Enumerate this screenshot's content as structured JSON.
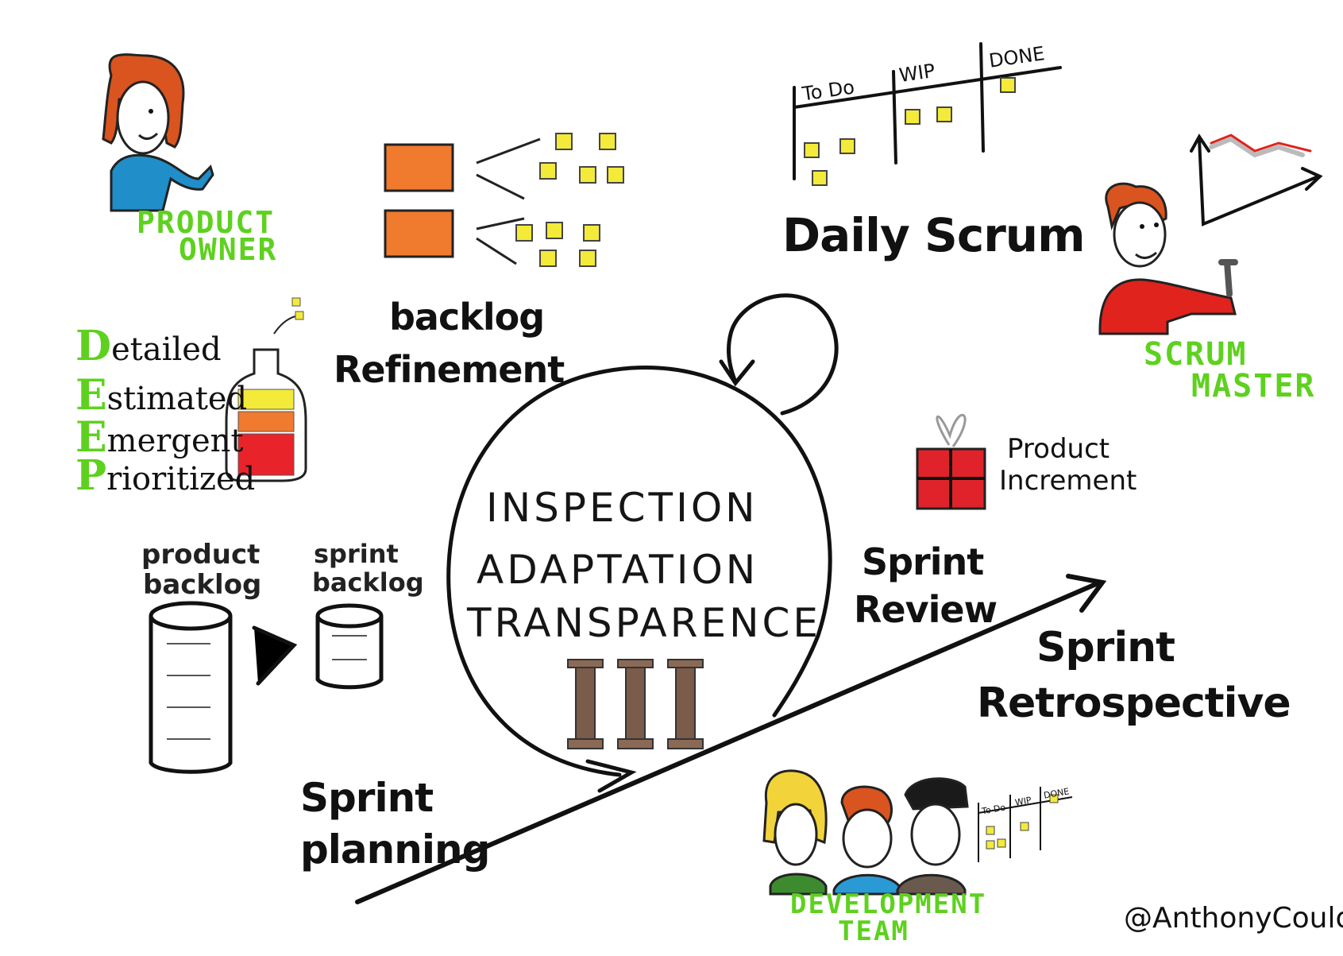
{
  "roles": {
    "product_owner": [
      "PRODUCT",
      "OWNER"
    ],
    "scrum_master": [
      "SCRUM",
      "MASTER"
    ],
    "development_team": [
      "DEVELOPMENT",
      "TEAM"
    ]
  },
  "events": {
    "backlog_refinement": [
      "backlog",
      "Refinement"
    ],
    "daily_scrum": "Daily Scrum",
    "sprint_planning": [
      "Sprint",
      "planning"
    ],
    "sprint_review": [
      "Sprint",
      "Review"
    ],
    "sprint_retrospective": [
      "Sprint",
      "Retrospective"
    ]
  },
  "pillars": [
    "INSPECTION",
    "ADAPTATION",
    "TRANSPARENCE"
  ],
  "deep": {
    "initials": [
      "D",
      "E",
      "E",
      "P"
    ],
    "rest": [
      "etailed",
      "stimated",
      "mergent",
      "rioritized"
    ]
  },
  "artifacts": {
    "product_backlog": [
      "product",
      "backlog"
    ],
    "sprint_backlog": [
      "sprint",
      "backlog"
    ],
    "product_increment": [
      "Product",
      "Increment"
    ]
  },
  "board": {
    "columns": [
      "To Do",
      "WIP",
      "DONE"
    ]
  },
  "credit": "@AnthonyCoulon",
  "colors": {
    "green": "#5ed11f",
    "sticky": "#f3ea3a",
    "orange": "#f07a2e",
    "red": "#e8242a"
  },
  "icons": [
    "person-icon",
    "gift-icon",
    "chart-icon",
    "column-icon",
    "bottle-icon",
    "cylinder-icon",
    "sticky-note-icon"
  ]
}
